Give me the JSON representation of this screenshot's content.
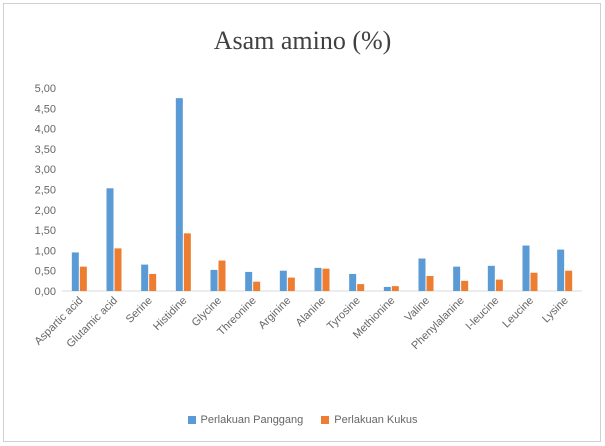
{
  "chart_data": {
    "type": "bar",
    "title": "Asam amino (%)",
    "categories": [
      "Aspartic acid",
      "Glutamic acid",
      "Serine",
      "Histidine",
      "Glycine",
      "Threonine",
      "Arginine",
      "Alanine",
      "Tyrosine",
      "Methionine",
      "Valine",
      "Phenylalanine",
      "I-leucine",
      "Leucine",
      "Lysine"
    ],
    "series": [
      {
        "name": "Perlakuan Panggang",
        "color": "#5b9bd5",
        "values": [
          0.95,
          2.53,
          0.65,
          4.75,
          0.52,
          0.47,
          0.5,
          0.57,
          0.42,
          0.1,
          0.8,
          0.6,
          0.62,
          1.12,
          1.02
        ]
      },
      {
        "name": "Perlakuan Kukus",
        "color": "#ed7d31",
        "values": [
          0.6,
          1.05,
          0.42,
          1.42,
          0.75,
          0.23,
          0.33,
          0.55,
          0.17,
          0.12,
          0.37,
          0.25,
          0.28,
          0.45,
          0.5
        ]
      }
    ],
    "ylim": [
      0,
      5
    ],
    "yticks": [
      "0,00",
      "0,50",
      "1,00",
      "1,50",
      "2,00",
      "2,50",
      "3,00",
      "3,50",
      "4,00",
      "4,50",
      "5,00"
    ],
    "grid": false,
    "legend": "bottom"
  }
}
